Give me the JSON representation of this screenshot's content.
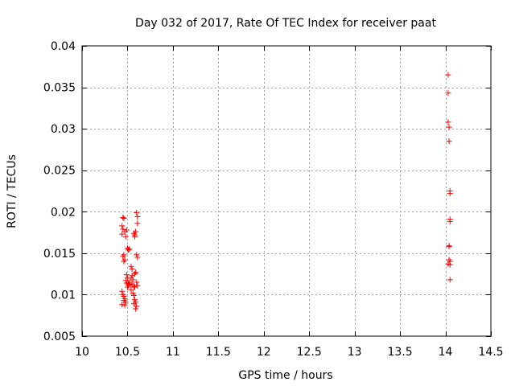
{
  "chart_data": {
    "type": "scatter",
    "title": "Day 032 of 2017, Rate Of TEC Index for receiver paat",
    "xlabel": "GPS time / hours",
    "ylabel": "ROTI / TECUs",
    "xlim": [
      10,
      14.5
    ],
    "ylim": [
      0.005,
      0.04
    ],
    "xticks": [
      10,
      10.5,
      11,
      11.5,
      12,
      12.5,
      13,
      13.5,
      14,
      14.5
    ],
    "xtick_labels": [
      "10",
      "10.5",
      "11",
      "11.5",
      "12",
      "12.5",
      "13",
      "13.5",
      "14",
      "14.5"
    ],
    "yticks": [
      0.005,
      0.01,
      0.015,
      0.02,
      0.025,
      0.03,
      0.035,
      0.04
    ],
    "ytick_labels": [
      "0.005",
      "0.01",
      "0.015",
      "0.02",
      "0.025",
      "0.03",
      "0.035",
      "0.04"
    ],
    "grid": true,
    "marker": "+",
    "color": "#ff0000",
    "series": [
      {
        "name": "ROTI",
        "points": [
          [
            10.45,
            0.0193
          ],
          [
            10.46,
            0.0192
          ],
          [
            10.44,
            0.0183
          ],
          [
            10.45,
            0.0179
          ],
          [
            10.47,
            0.0176
          ],
          [
            10.44,
            0.0173
          ],
          [
            10.48,
            0.017
          ],
          [
            10.49,
            0.0178
          ],
          [
            10.46,
            0.0148
          ],
          [
            10.45,
            0.0146
          ],
          [
            10.47,
            0.0142
          ],
          [
            10.46,
            0.014
          ],
          [
            10.5,
            0.0156
          ],
          [
            10.51,
            0.0154
          ],
          [
            10.52,
            0.0155
          ],
          [
            10.49,
            0.0124
          ],
          [
            10.5,
            0.012
          ],
          [
            10.48,
            0.0117
          ],
          [
            10.49,
            0.0114
          ],
          [
            10.51,
            0.0113
          ],
          [
            10.52,
            0.0115
          ],
          [
            10.53,
            0.0112
          ],
          [
            10.5,
            0.0109
          ],
          [
            10.51,
            0.0111
          ],
          [
            10.44,
            0.0104
          ],
          [
            10.45,
            0.01
          ],
          [
            10.46,
            0.0098
          ],
          [
            10.47,
            0.0095
          ],
          [
            10.46,
            0.0093
          ],
          [
            10.48,
            0.0091
          ],
          [
            10.44,
            0.0088
          ],
          [
            10.47,
            0.0087
          ],
          [
            10.55,
            0.0123
          ],
          [
            10.54,
            0.012
          ],
          [
            10.56,
            0.0118
          ],
          [
            10.55,
            0.0113
          ],
          [
            10.57,
            0.011
          ],
          [
            10.58,
            0.0109
          ],
          [
            10.54,
            0.0106
          ],
          [
            10.56,
            0.0102
          ],
          [
            10.57,
            0.0099
          ],
          [
            10.58,
            0.0094
          ],
          [
            10.59,
            0.0091
          ],
          [
            10.57,
            0.0089
          ],
          [
            10.6,
            0.0086
          ],
          [
            10.59,
            0.0083
          ],
          [
            10.55,
            0.0131
          ],
          [
            10.54,
            0.0134
          ],
          [
            10.58,
            0.0125
          ],
          [
            10.59,
            0.0127
          ],
          [
            10.6,
            0.0115
          ],
          [
            10.61,
            0.0111
          ],
          [
            10.57,
            0.0174
          ],
          [
            10.58,
            0.0172
          ],
          [
            10.59,
            0.0176
          ],
          [
            10.58,
            0.017
          ],
          [
            10.6,
            0.0199
          ],
          [
            10.61,
            0.0194
          ],
          [
            10.61,
            0.0186
          ],
          [
            10.6,
            0.0148
          ],
          [
            10.61,
            0.0145
          ],
          [
            14.03,
            0.0365
          ],
          [
            14.03,
            0.0343
          ],
          [
            14.03,
            0.0308
          ],
          [
            14.04,
            0.0302
          ],
          [
            14.04,
            0.0285
          ],
          [
            14.05,
            0.0225
          ],
          [
            14.05,
            0.0222
          ],
          [
            14.05,
            0.0191
          ],
          [
            14.05,
            0.0188
          ],
          [
            14.04,
            0.0159
          ],
          [
            14.04,
            0.0158
          ],
          [
            14.04,
            0.0142
          ],
          [
            14.05,
            0.014
          ],
          [
            14.03,
            0.0137
          ],
          [
            14.05,
            0.0136
          ],
          [
            14.05,
            0.0118
          ]
        ]
      }
    ]
  }
}
